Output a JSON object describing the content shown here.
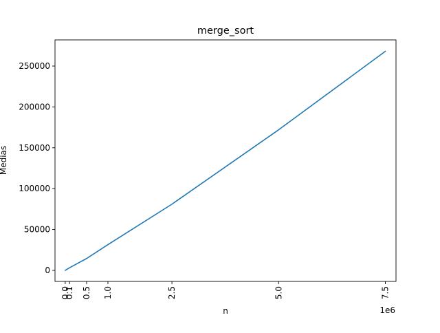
{
  "chart_data": {
    "type": "line",
    "title": "merge_sort",
    "xlabel": "n",
    "ylabel": "Medias",
    "x_offset_label": "1e6",
    "x_scale": 1000000,
    "xlim": [
      -240000,
      7750000
    ],
    "ylim": [
      -13500,
      282000
    ],
    "grid": false,
    "legend": "none",
    "x_ticks": [
      {
        "value": 0,
        "label": "0.0"
      },
      {
        "value": 100000,
        "label": "0.1"
      },
      {
        "value": 500000,
        "label": "0.5"
      },
      {
        "value": 1000000,
        "label": "1.0"
      },
      {
        "value": 2500000,
        "label": "2.5"
      },
      {
        "value": 5000000,
        "label": "5.0"
      },
      {
        "value": 7500000,
        "label": "7.5"
      }
    ],
    "y_ticks": [
      {
        "value": 0,
        "label": "0"
      },
      {
        "value": 50000,
        "label": "50000"
      },
      {
        "value": 100000,
        "label": "100000"
      },
      {
        "value": 150000,
        "label": "150000"
      },
      {
        "value": 200000,
        "label": "200000"
      },
      {
        "value": 250000,
        "label": "250000"
      }
    ],
    "series": [
      {
        "color": "#1f77b4",
        "x": [
          0,
          100000,
          500000,
          1000000,
          2500000,
          5000000,
          7500000
        ],
        "y": [
          0,
          3200,
          14500,
          31500,
          81000,
          172000,
          268000
        ]
      }
    ]
  }
}
